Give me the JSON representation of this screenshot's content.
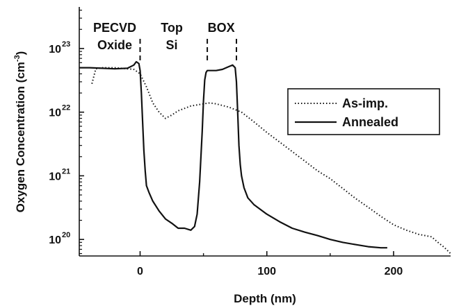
{
  "chart_data": {
    "type": "line",
    "title": "",
    "xlabel": "Depth (nm)",
    "ylabel": "Oxygen Concentration (cm",
    "ylabel_exponent": "-3",
    "ylabel_close": ")",
    "y_scale": "log",
    "xlim": [
      -48,
      245
    ],
    "ylim": [
      5.5e+19,
      4.5e+23
    ],
    "x_ticks": [
      {
        "value": 0,
        "label": "0"
      },
      {
        "value": 100,
        "label": "100"
      },
      {
        "value": 200,
        "label": "200"
      }
    ],
    "y_ticks": [
      {
        "value": 1e+20,
        "base": "10",
        "exponent": "20"
      },
      {
        "value": 1e+21,
        "base": "10",
        "exponent": "21"
      },
      {
        "value": 1e+22,
        "base": "10",
        "exponent": "22"
      },
      {
        "value": 1e+23,
        "base": "10",
        "exponent": "23"
      }
    ],
    "grid": false,
    "legend_position": "right",
    "region_labels": [
      {
        "lines": [
          "PECVD",
          "Oxide"
        ],
        "x": -20
      },
      {
        "lines": [
          "Top",
          "Si"
        ],
        "x": 25
      },
      {
        "lines": [
          "BOX"
        ],
        "x": 64
      }
    ],
    "boundaries": [
      0,
      53,
      76
    ],
    "series": [
      {
        "name": "As-imp.",
        "style": "dotted",
        "x": [
          -38,
          -36,
          -35,
          -30,
          -20,
          -10,
          -5,
          0,
          5,
          10,
          15,
          20,
          25,
          30,
          40,
          50,
          55,
          60,
          70,
          80,
          90,
          100,
          110,
          120,
          130,
          140,
          150,
          160,
          170,
          180,
          190,
          200,
          210,
          220,
          230,
          235,
          240,
          245
        ],
        "y": [
          2.8e+22,
          4e+22,
          4.8e+22,
          5e+22,
          5e+22,
          4.8e+22,
          4.7e+22,
          4e+22,
          2.5e+22,
          1.4e+22,
          1e+22,
          8e+21,
          9e+21,
          1.05e+22,
          1.25e+22,
          1.35e+22,
          1.4e+22,
          1.35e+22,
          1.2e+22,
          1e+22,
          7e+21,
          4.8e+21,
          3.4e+21,
          2.4e+21,
          1.7e+21,
          1.2e+21,
          9e+20,
          6.3e+20,
          4.4e+20,
          3.2e+20,
          2.3e+20,
          1.7e+20,
          1.4e+20,
          1.2e+20,
          1.1e+20,
          9e+19,
          7.5e+19,
          6e+19
        ]
      },
      {
        "name": "Annealed",
        "style": "solid",
        "x": [
          -48,
          -40,
          -30,
          -20,
          -10,
          -5,
          -3,
          -1,
          0,
          1,
          2,
          3,
          4,
          5,
          7,
          10,
          15,
          20,
          25,
          30,
          35,
          40,
          43,
          45,
          47,
          49,
          50,
          51,
          52,
          53,
          55,
          60,
          65,
          70,
          73,
          75,
          76,
          77,
          78,
          79,
          80,
          82,
          85,
          90,
          100,
          110,
          120,
          130,
          140,
          150,
          160,
          170,
          180,
          190,
          195
        ],
        "y": [
          5e+22,
          5e+22,
          4.9e+22,
          4.8e+22,
          4.9e+22,
          5.5e+22,
          6.2e+22,
          5.8e+22,
          4.5e+22,
          2e+22,
          7e+21,
          2.5e+21,
          1.2e+21,
          7e+20,
          5.5e+20,
          4e+20,
          2.8e+20,
          2.1e+20,
          1.8e+20,
          1.5e+20,
          1.5e+20,
          1.4e+20,
          1.6e+20,
          2.5e+20,
          8e+20,
          5e+21,
          1.5e+22,
          3.2e+22,
          4.2e+22,
          4.5e+22,
          4.5e+22,
          4.5e+22,
          4.7e+22,
          5.2e+22,
          5.5e+22,
          5e+22,
          3e+22,
          1e+22,
          3e+21,
          1.5e+21,
          1e+21,
          6.5e+20,
          4.5e+20,
          3.5e+20,
          2.5e+20,
          1.9e+20,
          1.5e+20,
          1.3e+20,
          1.15e+20,
          1e+20,
          9e+19,
          8.3e+19,
          7.7e+19,
          7.4e+19,
          7.4e+19
        ]
      }
    ]
  }
}
